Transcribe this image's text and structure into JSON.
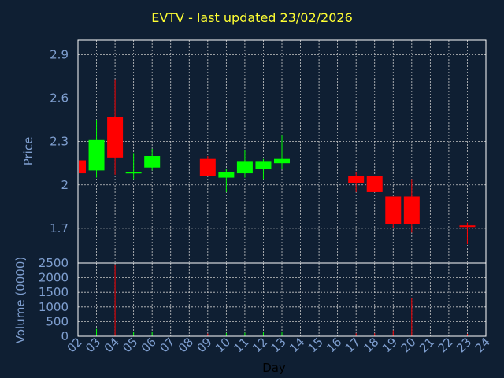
{
  "chart_data": {
    "type": "candlestick",
    "title": "EVTV - last updated 23/02/2026",
    "xlabel": "Day",
    "price_ylabel": "Price",
    "volume_ylabel": "Volume (0000)",
    "x_ticks": [
      "02",
      "03",
      "04",
      "05",
      "06",
      "07",
      "08",
      "09",
      "10",
      "11",
      "12",
      "13",
      "14",
      "15",
      "16",
      "17",
      "18",
      "19",
      "20",
      "21",
      "22",
      "23",
      "24"
    ],
    "price_ticks": [
      "1.7",
      "2",
      "2.3",
      "2.6",
      "2.9"
    ],
    "volume_ticks": [
      "0",
      "500",
      "1000",
      "1500",
      "2000",
      "2500"
    ],
    "price_ylim": [
      1.46,
      3.0
    ],
    "volume_ylim": [
      0,
      2500
    ],
    "grid": true,
    "colors": {
      "up": "#00ff00",
      "down": "#ff0000",
      "background": "#0f1f33",
      "plot": "#0f1f33",
      "title": "#ffff33",
      "axis_text": "#7f9fd0"
    },
    "candles": [
      {
        "day": 2,
        "open": 2.17,
        "high": 2.17,
        "low": 2.08,
        "close": 2.08,
        "volume": 0
      },
      {
        "day": 3,
        "open": 2.1,
        "high": 2.45,
        "low": 2.05,
        "close": 2.31,
        "volume": 250
      },
      {
        "day": 4,
        "open": 2.47,
        "high": 2.73,
        "low": 2.07,
        "close": 2.19,
        "volume": 2450
      },
      {
        "day": 5,
        "open": 2.08,
        "high": 2.22,
        "low": 2.04,
        "close": 2.09,
        "volume": 150
      },
      {
        "day": 6,
        "open": 2.12,
        "high": 2.25,
        "low": 2.1,
        "close": 2.2,
        "volume": 140
      },
      {
        "day": 9,
        "open": 2.18,
        "high": 2.2,
        "low": 2.06,
        "close": 2.06,
        "volume": 90
      },
      {
        "day": 10,
        "open": 2.05,
        "high": 2.11,
        "low": 1.95,
        "close": 2.09,
        "volume": 110
      },
      {
        "day": 11,
        "open": 2.08,
        "high": 2.24,
        "low": 2.05,
        "close": 2.16,
        "volume": 120
      },
      {
        "day": 12,
        "open": 2.11,
        "high": 2.18,
        "low": 2.04,
        "close": 2.16,
        "volume": 130
      },
      {
        "day": 13,
        "open": 2.15,
        "high": 2.34,
        "low": 2.11,
        "close": 2.18,
        "volume": 140
      },
      {
        "day": 17,
        "open": 2.06,
        "high": 2.09,
        "low": 1.95,
        "close": 2.01,
        "volume": 100
      },
      {
        "day": 18,
        "open": 2.06,
        "high": 2.06,
        "low": 1.95,
        "close": 1.95,
        "volume": 100
      },
      {
        "day": 19,
        "open": 1.92,
        "high": 1.92,
        "low": 1.7,
        "close": 1.73,
        "volume": 200
      },
      {
        "day": 20,
        "open": 1.92,
        "high": 2.04,
        "low": 1.67,
        "close": 1.73,
        "volume": 1300
      },
      {
        "day": 23,
        "open": 1.72,
        "high": 1.74,
        "low": 1.59,
        "close": 1.71,
        "volume": 80
      }
    ]
  }
}
